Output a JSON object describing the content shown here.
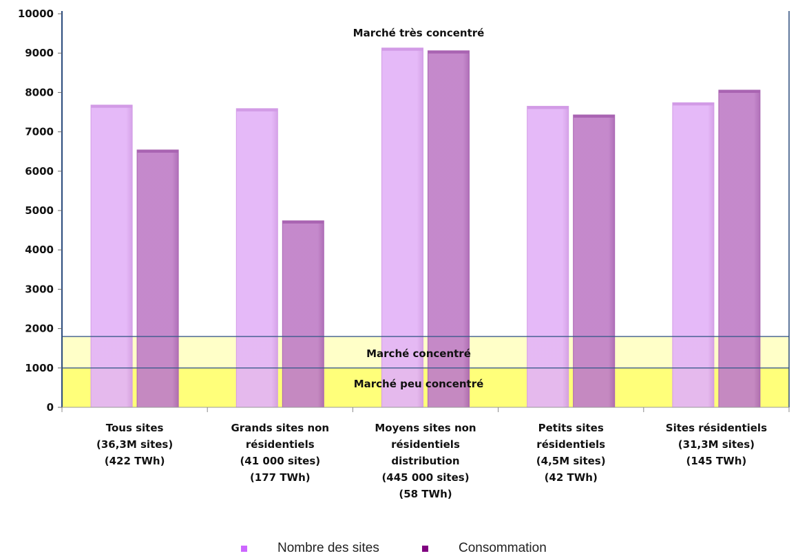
{
  "chart_data": {
    "type": "bar",
    "categories": [
      [
        "Tous sites",
        "(36,3M sites)",
        "(422 TWh)"
      ],
      [
        "Grands sites non",
        "résidentiels",
        "(41 000 sites)",
        "(177 TWh)"
      ],
      [
        "Moyens sites non",
        "résidentiels",
        "distribution",
        "(445 000 sites)",
        "(58 TWh)"
      ],
      [
        "Petits sites",
        "résidentiels",
        "(4,5M sites)",
        "(42 TWh)"
      ],
      [
        "Sites résidentiels",
        "(31,3M sites)",
        "(145 TWh)"
      ]
    ],
    "series": [
      {
        "name": "Nombre des sites",
        "color": "#e3b3f7",
        "values": [
          7680,
          7590,
          9130,
          7650,
          7740
        ]
      },
      {
        "name": "Consommation",
        "color": "#c07fc7",
        "values": [
          6540,
          4740,
          9060,
          7430,
          8060
        ]
      }
    ],
    "ylim": [
      0,
      10000
    ],
    "yticks": [
      0,
      1000,
      2000,
      3000,
      4000,
      5000,
      6000,
      7000,
      8000,
      9000,
      10000
    ],
    "zones": [
      {
        "label": "Marché peu concentré",
        "from": 0,
        "to": 1000,
        "color": "#ffff7a"
      },
      {
        "label": "Marché concentré",
        "from": 1000,
        "to": 1800,
        "color": "#ffffc8"
      },
      {
        "label": "Marché très concentré",
        "from": 1800,
        "to": 10000,
        "color": "#ffffff"
      }
    ],
    "legend_swatch_colors": [
      "#cc66ff",
      "#800080"
    ],
    "xlabel": "",
    "ylabel": "",
    "title": "",
    "legend_position": "bottom"
  }
}
